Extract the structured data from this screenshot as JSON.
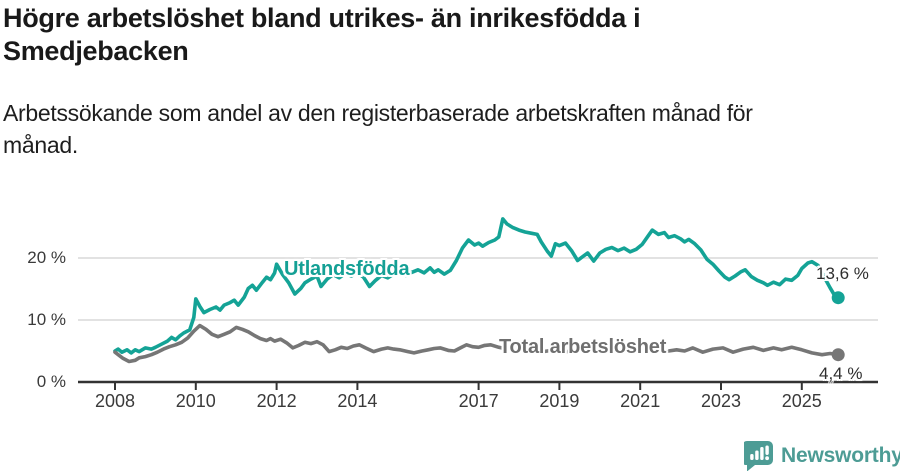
{
  "header": {
    "title": "Högre arbetslöshet bland utrikes- än inrikesfödda i\nSmedjebacken",
    "subtitle": "Arbetssökande som andel av den registerbaserade arbetskraften månad för\nmånad."
  },
  "chart_data": {
    "type": "line",
    "title": "Högre arbetslöshet bland utrikes- än inrikesfödda i Smedjebacken",
    "subtitle": "Arbetssökande som andel av den registerbaserade arbetskraften månad för månad.",
    "unit": "%",
    "grid": "horizontal",
    "x_axis": {
      "range": [
        2008,
        2026
      ],
      "ticks": [
        {
          "label": "2008",
          "value": 2008
        },
        {
          "label": "2010",
          "value": 2010
        },
        {
          "label": "2012",
          "value": 2012
        },
        {
          "label": "2014",
          "value": 2014
        },
        {
          "label": "2017",
          "value": 2017
        },
        {
          "label": "2019",
          "value": 2019
        },
        {
          "label": "2021",
          "value": 2021
        },
        {
          "label": "2023",
          "value": 2023
        },
        {
          "label": "2025",
          "value": 2025
        }
      ]
    },
    "y_axis": {
      "range": [
        0,
        27
      ],
      "ticks": [
        {
          "label": "0 %",
          "value": 0
        },
        {
          "label": "10 %",
          "value": 10
        },
        {
          "label": "20 %",
          "value": 20
        }
      ]
    },
    "series": [
      {
        "name": "Utlandsfödda",
        "color": "#14a396",
        "end_label": "13,6 %",
        "end_value": 13.6,
        "points": [
          [
            2008.0,
            5.0
          ],
          [
            2008.08,
            5.3
          ],
          [
            2008.17,
            4.8
          ],
          [
            2008.3,
            5.2
          ],
          [
            2008.4,
            4.7
          ],
          [
            2008.5,
            5.2
          ],
          [
            2008.6,
            4.9
          ],
          [
            2008.75,
            5.5
          ],
          [
            2008.9,
            5.3
          ],
          [
            2009.0,
            5.6
          ],
          [
            2009.15,
            6.1
          ],
          [
            2009.3,
            6.6
          ],
          [
            2009.4,
            7.2
          ],
          [
            2009.5,
            6.8
          ],
          [
            2009.6,
            7.4
          ],
          [
            2009.7,
            7.9
          ],
          [
            2009.85,
            8.4
          ],
          [
            2009.95,
            10.4
          ],
          [
            2010.0,
            13.4
          ],
          [
            2010.1,
            12.2
          ],
          [
            2010.2,
            11.2
          ],
          [
            2010.35,
            11.7
          ],
          [
            2010.5,
            12.1
          ],
          [
            2010.6,
            11.6
          ],
          [
            2010.7,
            12.4
          ],
          [
            2010.85,
            12.8
          ],
          [
            2010.95,
            13.2
          ],
          [
            2011.05,
            12.4
          ],
          [
            2011.2,
            13.7
          ],
          [
            2011.3,
            15.1
          ],
          [
            2011.4,
            15.6
          ],
          [
            2011.5,
            14.8
          ],
          [
            2011.65,
            16.1
          ],
          [
            2011.75,
            16.9
          ],
          [
            2011.85,
            16.5
          ],
          [
            2011.95,
            17.6
          ],
          [
            2012.0,
            19.0
          ],
          [
            2012.15,
            17.3
          ],
          [
            2012.3,
            16.0
          ],
          [
            2012.45,
            14.2
          ],
          [
            2012.6,
            15.1
          ],
          [
            2012.7,
            16.0
          ],
          [
            2012.85,
            16.6
          ],
          [
            2013.0,
            17.1
          ],
          [
            2013.1,
            15.4
          ],
          [
            2013.25,
            16.6
          ],
          [
            2013.4,
            17.3
          ],
          [
            2013.55,
            16.8
          ],
          [
            2013.7,
            17.5
          ],
          [
            2013.85,
            17.1
          ],
          [
            2014.0,
            17.6
          ],
          [
            2014.15,
            16.9
          ],
          [
            2014.3,
            15.4
          ],
          [
            2014.45,
            16.4
          ],
          [
            2014.6,
            17.2
          ],
          [
            2014.75,
            16.8
          ],
          [
            2014.9,
            17.4
          ],
          [
            2015.05,
            17.9
          ],
          [
            2015.2,
            17.2
          ],
          [
            2015.35,
            17.7
          ],
          [
            2015.5,
            18.1
          ],
          [
            2015.65,
            17.6
          ],
          [
            2015.8,
            18.4
          ],
          [
            2015.9,
            17.7
          ],
          [
            2016.0,
            18.1
          ],
          [
            2016.15,
            17.4
          ],
          [
            2016.3,
            18.0
          ],
          [
            2016.45,
            19.6
          ],
          [
            2016.6,
            21.6
          ],
          [
            2016.75,
            22.9
          ],
          [
            2016.9,
            22.1
          ],
          [
            2017.0,
            22.4
          ],
          [
            2017.1,
            21.9
          ],
          [
            2017.25,
            22.5
          ],
          [
            2017.4,
            22.9
          ],
          [
            2017.5,
            23.4
          ],
          [
            2017.6,
            26.3
          ],
          [
            2017.7,
            25.5
          ],
          [
            2017.85,
            24.9
          ],
          [
            2018.0,
            24.5
          ],
          [
            2018.15,
            24.2
          ],
          [
            2018.3,
            24.0
          ],
          [
            2018.45,
            23.8
          ],
          [
            2018.55,
            22.6
          ],
          [
            2018.7,
            21.1
          ],
          [
            2018.8,
            20.3
          ],
          [
            2018.9,
            22.3
          ],
          [
            2019.0,
            22.0
          ],
          [
            2019.15,
            22.4
          ],
          [
            2019.3,
            21.2
          ],
          [
            2019.45,
            19.6
          ],
          [
            2019.55,
            20.1
          ],
          [
            2019.7,
            20.8
          ],
          [
            2019.85,
            19.5
          ],
          [
            2020.0,
            20.8
          ],
          [
            2020.15,
            21.4
          ],
          [
            2020.3,
            21.7
          ],
          [
            2020.45,
            21.2
          ],
          [
            2020.6,
            21.6
          ],
          [
            2020.75,
            21.0
          ],
          [
            2020.9,
            21.4
          ],
          [
            2021.05,
            22.2
          ],
          [
            2021.2,
            23.6
          ],
          [
            2021.3,
            24.5
          ],
          [
            2021.45,
            23.8
          ],
          [
            2021.6,
            24.1
          ],
          [
            2021.7,
            23.3
          ],
          [
            2021.85,
            23.6
          ],
          [
            2022.0,
            23.1
          ],
          [
            2022.1,
            22.6
          ],
          [
            2022.2,
            23.0
          ],
          [
            2022.35,
            22.3
          ],
          [
            2022.5,
            21.3
          ],
          [
            2022.65,
            19.8
          ],
          [
            2022.8,
            19.0
          ],
          [
            2022.95,
            17.9
          ],
          [
            2023.1,
            16.9
          ],
          [
            2023.2,
            16.5
          ],
          [
            2023.35,
            17.1
          ],
          [
            2023.5,
            17.8
          ],
          [
            2023.6,
            18.1
          ],
          [
            2023.75,
            17.0
          ],
          [
            2023.9,
            16.4
          ],
          [
            2024.05,
            16.0
          ],
          [
            2024.15,
            15.6
          ],
          [
            2024.3,
            16.1
          ],
          [
            2024.45,
            15.7
          ],
          [
            2024.6,
            16.6
          ],
          [
            2024.75,
            16.4
          ],
          [
            2024.9,
            17.2
          ],
          [
            2025.0,
            18.3
          ],
          [
            2025.15,
            19.2
          ],
          [
            2025.25,
            19.4
          ],
          [
            2025.4,
            18.8
          ],
          [
            2025.55,
            17.0
          ],
          [
            2025.7,
            15.2
          ],
          [
            2025.8,
            14.1
          ],
          [
            2025.9,
            13.6
          ]
        ]
      },
      {
        "name": "Total arbetslöshet",
        "color": "#767676",
        "end_label": "4,4 %",
        "end_value": 4.4,
        "points": [
          [
            2008.0,
            4.8
          ],
          [
            2008.1,
            4.3
          ],
          [
            2008.2,
            3.8
          ],
          [
            2008.35,
            3.3
          ],
          [
            2008.5,
            3.5
          ],
          [
            2008.6,
            3.9
          ],
          [
            2008.75,
            4.1
          ],
          [
            2008.9,
            4.4
          ],
          [
            2009.05,
            4.8
          ],
          [
            2009.2,
            5.3
          ],
          [
            2009.35,
            5.7
          ],
          [
            2009.5,
            6.0
          ],
          [
            2009.65,
            6.4
          ],
          [
            2009.8,
            7.1
          ],
          [
            2009.95,
            8.2
          ],
          [
            2010.1,
            9.1
          ],
          [
            2010.25,
            8.5
          ],
          [
            2010.4,
            7.7
          ],
          [
            2010.55,
            7.3
          ],
          [
            2010.7,
            7.7
          ],
          [
            2010.85,
            8.1
          ],
          [
            2011.0,
            8.8
          ],
          [
            2011.15,
            8.5
          ],
          [
            2011.3,
            8.1
          ],
          [
            2011.45,
            7.5
          ],
          [
            2011.6,
            7.0
          ],
          [
            2011.75,
            6.7
          ],
          [
            2011.85,
            7.0
          ],
          [
            2011.95,
            6.6
          ],
          [
            2012.1,
            6.9
          ],
          [
            2012.25,
            6.3
          ],
          [
            2012.4,
            5.5
          ],
          [
            2012.55,
            5.9
          ],
          [
            2012.7,
            6.4
          ],
          [
            2012.85,
            6.2
          ],
          [
            2013.0,
            6.5
          ],
          [
            2013.15,
            6.0
          ],
          [
            2013.3,
            4.9
          ],
          [
            2013.45,
            5.2
          ],
          [
            2013.6,
            5.6
          ],
          [
            2013.75,
            5.4
          ],
          [
            2013.9,
            5.8
          ],
          [
            2014.05,
            6.0
          ],
          [
            2014.2,
            5.5
          ],
          [
            2014.4,
            4.9
          ],
          [
            2014.6,
            5.3
          ],
          [
            2014.75,
            5.5
          ],
          [
            2014.9,
            5.3
          ],
          [
            2015.05,
            5.2
          ],
          [
            2015.25,
            4.9
          ],
          [
            2015.4,
            4.7
          ],
          [
            2015.6,
            5.0
          ],
          [
            2015.75,
            5.2
          ],
          [
            2015.9,
            5.4
          ],
          [
            2016.05,
            5.5
          ],
          [
            2016.25,
            5.1
          ],
          [
            2016.4,
            5.0
          ],
          [
            2016.55,
            5.5
          ],
          [
            2016.7,
            6.0
          ],
          [
            2016.85,
            5.7
          ],
          [
            2017.0,
            5.6
          ],
          [
            2017.15,
            5.9
          ],
          [
            2017.3,
            6.0
          ],
          [
            2017.5,
            5.6
          ],
          [
            2017.7,
            5.3
          ],
          [
            2017.9,
            5.1
          ],
          [
            2018.1,
            5.3
          ],
          [
            2018.3,
            5.0
          ],
          [
            2018.5,
            4.8
          ],
          [
            2018.7,
            5.0
          ],
          [
            2018.9,
            5.2
          ],
          [
            2019.1,
            5.0
          ],
          [
            2019.3,
            4.8
          ],
          [
            2019.5,
            4.9
          ],
          [
            2019.7,
            5.1
          ],
          [
            2019.9,
            5.3
          ],
          [
            2020.1,
            5.6
          ],
          [
            2020.3,
            6.1
          ],
          [
            2020.5,
            6.3
          ],
          [
            2020.7,
            6.0
          ],
          [
            2020.9,
            5.8
          ],
          [
            2021.1,
            5.6
          ],
          [
            2021.3,
            5.3
          ],
          [
            2021.5,
            5.1
          ],
          [
            2021.7,
            5.0
          ],
          [
            2021.9,
            5.2
          ],
          [
            2022.1,
            5.0
          ],
          [
            2022.3,
            5.5
          ],
          [
            2022.55,
            4.8
          ],
          [
            2022.8,
            5.3
          ],
          [
            2023.05,
            5.5
          ],
          [
            2023.3,
            4.8
          ],
          [
            2023.55,
            5.3
          ],
          [
            2023.8,
            5.6
          ],
          [
            2024.05,
            5.1
          ],
          [
            2024.3,
            5.5
          ],
          [
            2024.5,
            5.2
          ],
          [
            2024.75,
            5.6
          ],
          [
            2025.0,
            5.2
          ],
          [
            2025.25,
            4.7
          ],
          [
            2025.5,
            4.4
          ],
          [
            2025.7,
            4.6
          ],
          [
            2025.9,
            4.4
          ]
        ]
      }
    ],
    "legend_position": "inline-on-lines"
  },
  "footer": {
    "brand": "Newsworthy"
  },
  "colors": {
    "accent_teal": "#14a396",
    "line_gray": "#767676",
    "brand_teal": "#4d9c95",
    "grid": "#d9d9d9",
    "axis": "#333333"
  }
}
